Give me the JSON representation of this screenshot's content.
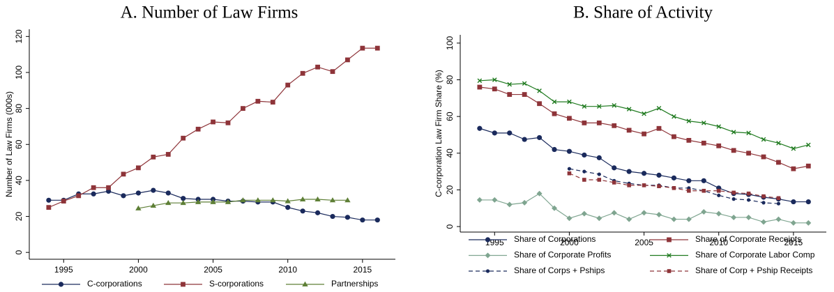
{
  "chart_data": [
    {
      "type": "line",
      "title": "A. Number of Law Firms",
      "y_label": "Number of Law Firms (000s)",
      "x": [
        1994,
        1995,
        1996,
        1997,
        1998,
        1999,
        2000,
        2001,
        2002,
        2003,
        2004,
        2005,
        2006,
        2007,
        2008,
        2009,
        2010,
        2011,
        2012,
        2013,
        2014,
        2015,
        2016
      ],
      "xlim": [
        1992.7,
        2017.2
      ],
      "xticks": [
        1995,
        2000,
        2005,
        2010,
        2015
      ],
      "ylim": [
        -3.8,
        124
      ],
      "yticks": [
        0,
        20,
        40,
        60,
        80,
        100,
        120
      ],
      "grid": false,
      "series": [
        {
          "name": "C-corporations",
          "color": "#1a2a5c",
          "marker": "circle",
          "dash": false,
          "values": [
            29,
            29,
            32.5,
            32.5,
            34,
            31.5,
            33,
            34.5,
            33,
            30,
            29.5,
            29.5,
            28.5,
            28.5,
            28,
            28,
            25,
            23,
            22,
            20,
            19.5,
            18,
            18
          ]
        },
        {
          "name": "S-corporations",
          "color": "#8e3439",
          "marker": "square",
          "dash": false,
          "values": [
            25,
            28.5,
            31.5,
            36,
            36,
            43.5,
            47,
            53,
            54.5,
            63.5,
            68.5,
            72.5,
            72,
            80,
            84,
            83.5,
            93,
            99.5,
            103,
            100.5,
            107,
            113.5,
            113.5
          ]
        },
        {
          "name": "Partnerships",
          "color": "#5e7f36",
          "marker": "triangle",
          "dash": false,
          "values": [
            null,
            null,
            null,
            null,
            null,
            null,
            24.5,
            26,
            27.5,
            27.5,
            28,
            28,
            28,
            29,
            29,
            29,
            28.5,
            29.5,
            29.5,
            29,
            29,
            null,
            null
          ]
        }
      ]
    },
    {
      "type": "line",
      "title": "B. Share of Activity",
      "y_label": "C-corporation Law Firm Share (%)",
      "x": [
        1994,
        1995,
        1996,
        1997,
        1998,
        1999,
        2000,
        2001,
        2002,
        2003,
        2004,
        2005,
        2006,
        2007,
        2008,
        2009,
        2010,
        2011,
        2012,
        2013,
        2014,
        2015,
        2016
      ],
      "xlim": [
        1992.7,
        2017.2
      ],
      "xticks": [
        1995,
        2000,
        2005,
        2010,
        2015
      ],
      "ylim": [
        -3,
        104.5
      ],
      "yticks": [
        0,
        20,
        40,
        60,
        80,
        100
      ],
      "grid": false,
      "series": [
        {
          "name": "Share of Corporations",
          "color": "#1a2a5c",
          "marker": "circle",
          "dash": false,
          "values": [
            53.5,
            51,
            51,
            47.5,
            48.5,
            42,
            41,
            39,
            37.5,
            32,
            30,
            29,
            28,
            26.5,
            25,
            25,
            21,
            18,
            17.5,
            16,
            15,
            13.5,
            13.5
          ]
        },
        {
          "name": "Share of Corporate Receipts",
          "color": "#8e3439",
          "marker": "square",
          "dash": false,
          "values": [
            76,
            75,
            72,
            72,
            67,
            61.5,
            59,
            56.5,
            56.5,
            55,
            52.5,
            50.5,
            53.5,
            49,
            47,
            45.5,
            44,
            41.5,
            40,
            38,
            35,
            31.5,
            33
          ]
        },
        {
          "name": "Share of Corporate Profits",
          "color": "#7fa590",
          "marker": "diamond",
          "dash": false,
          "values": [
            14.5,
            14.5,
            12,
            13,
            18,
            10,
            4.5,
            7,
            4.5,
            7.5,
            4,
            7.5,
            6.5,
            4,
            4,
            8,
            7,
            5,
            5,
            2.5,
            4,
            2,
            2
          ]
        },
        {
          "name": "Share of Corporate Labor Comp",
          "color": "#1f7a1f",
          "marker": "x",
          "dash": false,
          "values": [
            79.5,
            80,
            77.5,
            78,
            74,
            68,
            68,
            65.5,
            65.5,
            66,
            64,
            61.5,
            64.5,
            60,
            57.5,
            56.5,
            54.5,
            51.5,
            51,
            47.5,
            45.5,
            42.5,
            44.5
          ]
        },
        {
          "name": "Share of Corps + Pships",
          "color": "#1a2a5c",
          "marker": "circle-small",
          "dash": true,
          "values": [
            null,
            null,
            null,
            null,
            null,
            null,
            31.5,
            30,
            28.5,
            25,
            23.5,
            22.5,
            22.5,
            21,
            21,
            19.5,
            17,
            15,
            14.5,
            13,
            12.5,
            null,
            null
          ]
        },
        {
          "name": "Share of Corp + Pship Receipts",
          "color": "#8e3439",
          "marker": "square-small",
          "dash": true,
          "values": [
            null,
            null,
            null,
            null,
            null,
            null,
            29,
            25.5,
            25.5,
            24,
            22.5,
            22.5,
            22,
            21,
            19.5,
            19.5,
            19.5,
            18.5,
            18,
            16.5,
            15.5,
            null,
            null
          ]
        }
      ]
    }
  ]
}
